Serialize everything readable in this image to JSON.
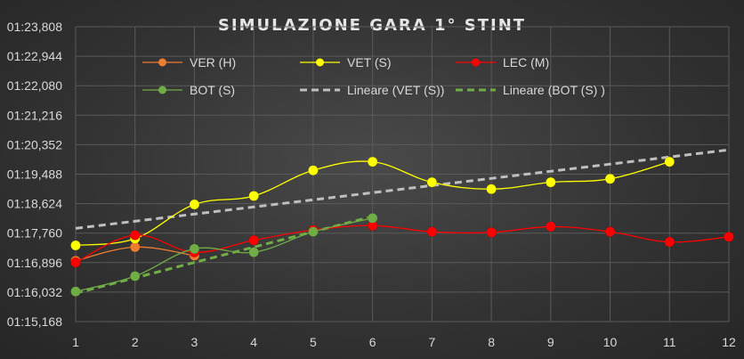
{
  "chart_data": {
    "type": "line",
    "title": "SIMULAZIONE GARA 1° STINT",
    "xlabel": "",
    "ylabel": "",
    "x": [
      1,
      2,
      3,
      4,
      5,
      6,
      7,
      8,
      9,
      10,
      11,
      12
    ],
    "x_tick_labels": [
      "1",
      "2",
      "3",
      "4",
      "5",
      "6",
      "7",
      "8",
      "9",
      "10",
      "11",
      "12"
    ],
    "y_tick_labels": [
      "01:15,168",
      "01:16,032",
      "01:16,896",
      "01:17,760",
      "01:18,624",
      "01:19,488",
      "01:20,352",
      "01:21,216",
      "01:22,080",
      "01:22,944",
      "01:23,808"
    ],
    "ylim": [
      75.168,
      83.808
    ],
    "y_ticks": [
      75.168,
      76.032,
      76.896,
      77.76,
      78.624,
      79.488,
      80.352,
      81.216,
      82.08,
      82.944,
      83.808
    ],
    "grid": true,
    "legend_position": "top",
    "series": [
      {
        "name": "VER (H)",
        "color": "#ed7d31",
        "style": "smooth-marker",
        "x": [
          1,
          2,
          3
        ],
        "values": [
          76.95,
          77.35,
          77.1
        ]
      },
      {
        "name": "VET (S)",
        "color": "#ffff00",
        "style": "smooth-marker",
        "x": [
          1,
          2,
          3,
          4,
          5,
          6,
          7,
          8,
          9,
          10,
          11
        ],
        "values": [
          77.4,
          77.6,
          78.6,
          78.85,
          79.6,
          79.85,
          79.25,
          79.05,
          79.25,
          79.35,
          79.85
        ]
      },
      {
        "name": "LEC (M)",
        "color": "#ff0000",
        "style": "smooth-marker",
        "x": [
          1,
          2,
          3,
          4,
          5,
          6,
          7,
          8,
          9,
          10,
          11,
          12
        ],
        "values": [
          76.9,
          77.7,
          77.2,
          77.55,
          77.85,
          77.98,
          77.8,
          77.78,
          77.95,
          77.8,
          77.5,
          77.65
        ]
      },
      {
        "name": "BOT (S)",
        "color": "#70ad47",
        "style": "smooth-marker",
        "x": [
          1,
          2,
          3,
          4,
          5,
          6
        ],
        "values": [
          76.05,
          76.5,
          77.3,
          77.2,
          77.8,
          78.2
        ]
      },
      {
        "name": "Lineare (VET (S))",
        "color": "#bfbfbf",
        "style": "dashed-trend",
        "x": [
          1,
          12
        ],
        "values": [
          77.9,
          80.2
        ]
      },
      {
        "name": "Lineare (BOT (S) )",
        "color": "#70ad47",
        "style": "dashed-trend",
        "x": [
          1,
          6
        ],
        "values": [
          76.0,
          78.25
        ]
      }
    ]
  }
}
